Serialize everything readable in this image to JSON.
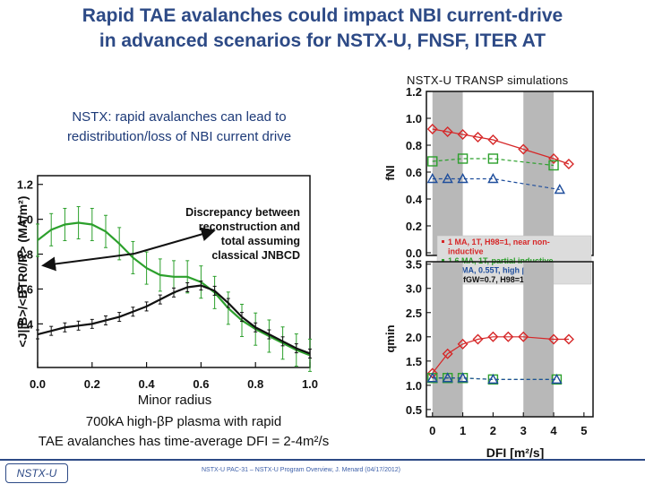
{
  "slide": {
    "title_line1": "Rapid TAE avalanches could impact NBI current-drive",
    "title_line2": "in advanced scenarios for NSTX-U, FNSF, ITER AT",
    "sim_label": "NSTX-U TRANSP simulations",
    "left_heading_line1": "NSTX:  rapid avalanches can lead to",
    "left_heading_line2": "redistribution/loss of NBI current drive",
    "caption_line1": "700kA high-βP plasma with rapid",
    "caption_line2": "TAE avalanches has time-average DFI = 2-4m²/s",
    "footer": "NSTX-U PAC-31 – NSTX-U Program Overview, J. Menard (04/17/2012)",
    "logo_text": "NSTX-U",
    "title_color": "#2d4a86"
  },
  "chart_data": [
    {
      "type": "line",
      "xlabel": "Minor radius",
      "ylabel": "<J||B>/<BTR0/R> (MA/m²)",
      "xlim": [
        0.0,
        1.0
      ],
      "ylim": [
        0.15,
        1.25
      ],
      "x_ticks": [
        "0.0",
        "0.2",
        "0.4",
        "0.6",
        "0.8",
        "1.0"
      ],
      "y_ticks": [
        "0.4",
        "0.6",
        "0.8",
        "1.0",
        "1.2"
      ],
      "annotation": [
        "Discrepancy between",
        "reconstruction and",
        "total  assuming",
        "classical JNBCD"
      ],
      "series": [
        {
          "color": "#2ca02c",
          "x": [
            0.0,
            0.05,
            0.1,
            0.15,
            0.2,
            0.25,
            0.3,
            0.35,
            0.4,
            0.45,
            0.5,
            0.55,
            0.6,
            0.65,
            0.7,
            0.75,
            0.8,
            0.85,
            0.9,
            0.95,
            1.0
          ],
          "y": [
            0.88,
            0.94,
            0.97,
            0.98,
            0.97,
            0.93,
            0.86,
            0.78,
            0.72,
            0.68,
            0.67,
            0.67,
            0.64,
            0.58,
            0.49,
            0.42,
            0.37,
            0.33,
            0.29,
            0.25,
            0.22
          ]
        },
        {
          "color": "#111111",
          "x": [
            0.0,
            0.05,
            0.1,
            0.15,
            0.2,
            0.25,
            0.3,
            0.35,
            0.4,
            0.45,
            0.5,
            0.55,
            0.6,
            0.65,
            0.7,
            0.75,
            0.8,
            0.85,
            0.9,
            0.95,
            1.0
          ],
          "y": [
            0.34,
            0.36,
            0.38,
            0.39,
            0.4,
            0.42,
            0.44,
            0.47,
            0.5,
            0.54,
            0.58,
            0.61,
            0.62,
            0.59,
            0.52,
            0.44,
            0.38,
            0.34,
            0.3,
            0.26,
            0.23
          ]
        }
      ]
    },
    {
      "type": "line",
      "ylabel": "fNI",
      "xlim": [
        -0.2,
        5.3
      ],
      "ylim": [
        -0.02,
        1.2
      ],
      "y_ticks": [
        "0.0",
        "0.2",
        "0.4",
        "0.6",
        "0.8",
        "1.0",
        "1.2"
      ],
      "shaded_x": [
        [
          0.0,
          1.0
        ],
        [
          3.0,
          4.0
        ]
      ],
      "series": [
        {
          "color": "#d62728",
          "marker": "diamond",
          "x": [
            0,
            0.5,
            1,
            1.5,
            2,
            3,
            4,
            4.5
          ],
          "y": [
            0.92,
            0.9,
            0.88,
            0.86,
            0.84,
            0.77,
            0.7,
            0.66
          ]
        },
        {
          "color": "#2ca02c",
          "marker": "square",
          "x": [
            0,
            1,
            2,
            4
          ],
          "y": [
            0.68,
            0.7,
            0.7,
            0.65
          ]
        },
        {
          "color": "#1f4e9c",
          "marker": "triangle",
          "x": [
            0,
            0.5,
            1,
            2,
            4.2
          ],
          "y": [
            0.55,
            0.55,
            0.55,
            0.55,
            0.47
          ]
        }
      ],
      "legend": {
        "entries": [
          {
            "color": "#d62728",
            "text": "1 MA, 1T, H98=1, near non-"
          },
          {
            "color": "#d62728",
            "text": "inductive"
          },
          {
            "color": "#2ca02c",
            "text": "1.6 MA, 1T, partial inductive"
          },
          {
            "color": "#1f4e9c",
            "text": "1.2 MA, 0.55T, high βT"
          },
          {
            "color": "#111111",
            "text": "All: fGW=0.7, H98=1"
          }
        ],
        "placement": "bottom"
      }
    },
    {
      "type": "line",
      "ylabel": "qmin",
      "xlabel": "DFI [m²/s]",
      "xlim": [
        -0.2,
        5.3
      ],
      "ylim": [
        0.35,
        3.55
      ],
      "x_ticks": [
        "0",
        "1",
        "2",
        "3",
        "4",
        "5"
      ],
      "y_ticks": [
        "0.5",
        "1.0",
        "1.5",
        "2.0",
        "2.5",
        "3.0",
        "3.5"
      ],
      "shaded_x": [
        [
          0.0,
          1.0
        ],
        [
          3.0,
          4.0
        ]
      ],
      "series": [
        {
          "color": "#d62728",
          "marker": "diamond",
          "x": [
            0,
            0.5,
            1,
            1.5,
            2,
            2.5,
            3,
            4,
            4.5
          ],
          "y": [
            1.25,
            1.65,
            1.85,
            1.95,
            2.0,
            2.0,
            2.0,
            1.95,
            1.95
          ]
        },
        {
          "color": "#2ca02c",
          "marker": "square",
          "x": [
            0,
            0.5,
            1,
            2,
            4.1
          ],
          "y": [
            1.15,
            1.15,
            1.15,
            1.12,
            1.12
          ]
        },
        {
          "color": "#1f4e9c",
          "marker": "triangle",
          "x": [
            0,
            0.5,
            1,
            2,
            4.1
          ],
          "y": [
            1.15,
            1.15,
            1.15,
            1.12,
            1.12
          ]
        }
      ]
    }
  ]
}
